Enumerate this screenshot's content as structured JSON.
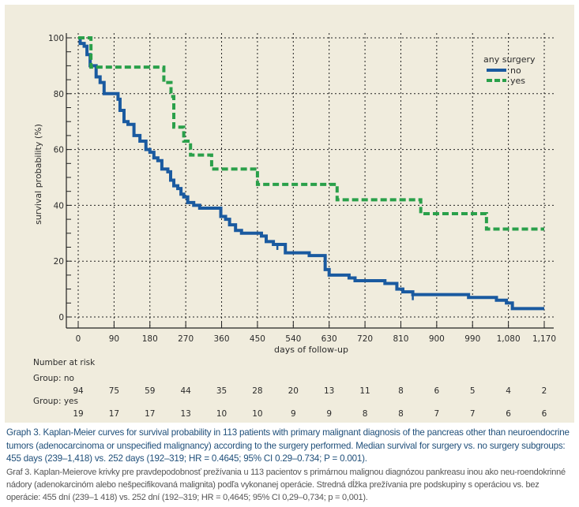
{
  "chart_data": {
    "type": "line",
    "subtype": "kaplan-meier step",
    "title": "",
    "xlabel": "days of follow-up",
    "ylabel": "survival probability (%)",
    "xlim": [
      0,
      1170
    ],
    "ylim": [
      0,
      100
    ],
    "x_ticks": [
      0,
      90,
      180,
      270,
      360,
      450,
      540,
      630,
      720,
      810,
      900,
      990,
      1080,
      1170
    ],
    "x_tick_labels": [
      "0",
      "90",
      "180",
      "270",
      "360",
      "450",
      "540",
      "630",
      "720",
      "810",
      "900",
      "990",
      "1,080",
      "1,170"
    ],
    "y_ticks": [
      0,
      20,
      40,
      60,
      80,
      100
    ],
    "y_tick_labels": [
      "0",
      "20",
      "40",
      "60",
      "80",
      "100"
    ],
    "y_minor_step": 5,
    "grid": true,
    "legend": {
      "title": "any surgery",
      "placement": "top-right"
    },
    "series": [
      {
        "name": "no",
        "color": "#1a5aa0",
        "style": "solid",
        "steps": [
          [
            0,
            100
          ],
          [
            5,
            98
          ],
          [
            15,
            97
          ],
          [
            22,
            94
          ],
          [
            30,
            90
          ],
          [
            45,
            86
          ],
          [
            55,
            84
          ],
          [
            65,
            80
          ],
          [
            100,
            78
          ],
          [
            105,
            74
          ],
          [
            115,
            70
          ],
          [
            125,
            69
          ],
          [
            140,
            65
          ],
          [
            155,
            63
          ],
          [
            170,
            60
          ],
          [
            180,
            59
          ],
          [
            190,
            57
          ],
          [
            200,
            56
          ],
          [
            210,
            53
          ],
          [
            225,
            52
          ],
          [
            232,
            49
          ],
          [
            240,
            47
          ],
          [
            250,
            46
          ],
          [
            258,
            44
          ],
          [
            265,
            43
          ],
          [
            275,
            41
          ],
          [
            290,
            40
          ],
          [
            305,
            39
          ],
          [
            350,
            39
          ],
          [
            358,
            36
          ],
          [
            370,
            35
          ],
          [
            380,
            33
          ],
          [
            395,
            31
          ],
          [
            410,
            30
          ],
          [
            455,
            30
          ],
          [
            460,
            29
          ],
          [
            472,
            27
          ],
          [
            490,
            26
          ],
          [
            510,
            26
          ],
          [
            520,
            23
          ],
          [
            575,
            23
          ],
          [
            580,
            22
          ],
          [
            615,
            22
          ],
          [
            620,
            17
          ],
          [
            630,
            15
          ],
          [
            670,
            15
          ],
          [
            680,
            14
          ],
          [
            695,
            13
          ],
          [
            760,
            13
          ],
          [
            770,
            12
          ],
          [
            800,
            10
          ],
          [
            815,
            9
          ],
          [
            840,
            8
          ],
          [
            975,
            8
          ],
          [
            980,
            7
          ],
          [
            1045,
            7
          ],
          [
            1050,
            6
          ],
          [
            1075,
            5
          ],
          [
            1090,
            3
          ],
          [
            1170,
            3
          ]
        ],
        "censor_marks": [
          [
            500,
            26
          ],
          [
            840,
            8
          ]
        ]
      },
      {
        "name": "yes",
        "color": "#2aa04a",
        "style": "dashed",
        "steps": [
          [
            0,
            100
          ],
          [
            30,
            100
          ],
          [
            32,
            89.5
          ],
          [
            210,
            89.5
          ],
          [
            215,
            84
          ],
          [
            230,
            84
          ],
          [
            233,
            79
          ],
          [
            240,
            68
          ],
          [
            260,
            68
          ],
          [
            265,
            63
          ],
          [
            280,
            63
          ],
          [
            282,
            58
          ],
          [
            330,
            58
          ],
          [
            335,
            53
          ],
          [
            445,
            53
          ],
          [
            450,
            47.5
          ],
          [
            645,
            47.5
          ],
          [
            650,
            42
          ],
          [
            855,
            42
          ],
          [
            860,
            37
          ],
          [
            1020,
            37
          ],
          [
            1025,
            31.5
          ],
          [
            1170,
            31.5
          ]
        ]
      }
    ],
    "number_at_risk": {
      "title": "Number at risk",
      "groups": [
        {
          "label": "Group: no",
          "values": [
            94,
            75,
            59,
            44,
            35,
            28,
            20,
            13,
            11,
            8,
            6,
            5,
            4,
            2
          ]
        },
        {
          "label": "Group: yes",
          "values": [
            19,
            17,
            17,
            13,
            10,
            10,
            9,
            9,
            8,
            8,
            7,
            7,
            6,
            6
          ]
        }
      ]
    }
  },
  "caption": {
    "english": "Graph 3. Kaplan-Meier curves for survival probability in 113 patients with primary malignant diagnosis of the pancreas other than neuroendocrine tumors (adenocarcinoma or unspecified malignancy) according to the surgery performed. Median survival for surgery vs. no surgery subgroups: 455 days (239–1,418) vs. 252 days (192–319; HR = 0.4645; 95% CI 0.29–0.734; P = 0.001).",
    "slovak": "Graf 3. Kaplan-Meierove krivky pre pravdepodobnosť prežívania u 113 pacientov s primárnou malignou diagnózou pankreasu inou ako neu-roendokrinné nádory (adenokarcinóm alebo nešpecifikovaná malignita) podľa vykonanej operácie. Stredná dĺžka prežívania pre podskupiny s operáciou vs. bez operácie: 455 dní (239–1 418) vs. 252 dní (192–319; HR = 0,4645; 95% CI 0,29–0,734; p = 0,001)."
  }
}
